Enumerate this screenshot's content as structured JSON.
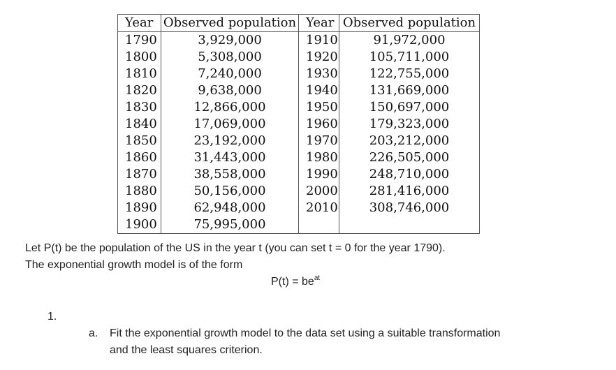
{
  "table": {
    "headers": [
      "Year",
      "Observed population",
      "Year",
      "Observed population"
    ],
    "left_rows": [
      {
        "year": "1790",
        "population": "3,929,000"
      },
      {
        "year": "1800",
        "population": "5,308,000"
      },
      {
        "year": "1810",
        "population": "7,240,000"
      },
      {
        "year": "1820",
        "population": "9,638,000"
      },
      {
        "year": "1830",
        "population": "12,866,000"
      },
      {
        "year": "1840",
        "population": "17,069,000"
      },
      {
        "year": "1850",
        "population": "23,192,000"
      },
      {
        "year": "1860",
        "population": "31,443,000"
      },
      {
        "year": "1870",
        "population": "38,558,000"
      },
      {
        "year": "1880",
        "population": "50,156,000"
      },
      {
        "year": "1890",
        "population": "62,948,000"
      },
      {
        "year": "1900",
        "population": "75,995,000"
      }
    ],
    "right_rows": [
      {
        "year": "1910",
        "population": "91,972,000"
      },
      {
        "year": "1920",
        "population": "105,711,000"
      },
      {
        "year": "1930",
        "population": "122,755,000"
      },
      {
        "year": "1940",
        "population": "131,669,000"
      },
      {
        "year": "1950",
        "population": "150,697,000"
      },
      {
        "year": "1960",
        "population": "179,323,000"
      },
      {
        "year": "1970",
        "population": "203,212,000"
      },
      {
        "year": "1980",
        "population": "226,505,000"
      },
      {
        "year": "1990",
        "population": "248,710,000"
      },
      {
        "year": "2000",
        "population": "281,416,000"
      },
      {
        "year": "2010",
        "population": "308,746,000"
      },
      {
        "year": "",
        "population": ""
      }
    ]
  },
  "intro": {
    "line1": "Let P(t) be the population of the US in the year t (you can set t = 0 for the year 1790).",
    "line2": "The exponential growth model is of the form"
  },
  "formula": {
    "base": "P(t) = be",
    "exponent": "at"
  },
  "question": {
    "number": "1.",
    "part_letter": "a.",
    "part_line1": "Fit the exponential growth model to the data set using a suitable transformation",
    "part_line2": "and the least squares criterion."
  }
}
